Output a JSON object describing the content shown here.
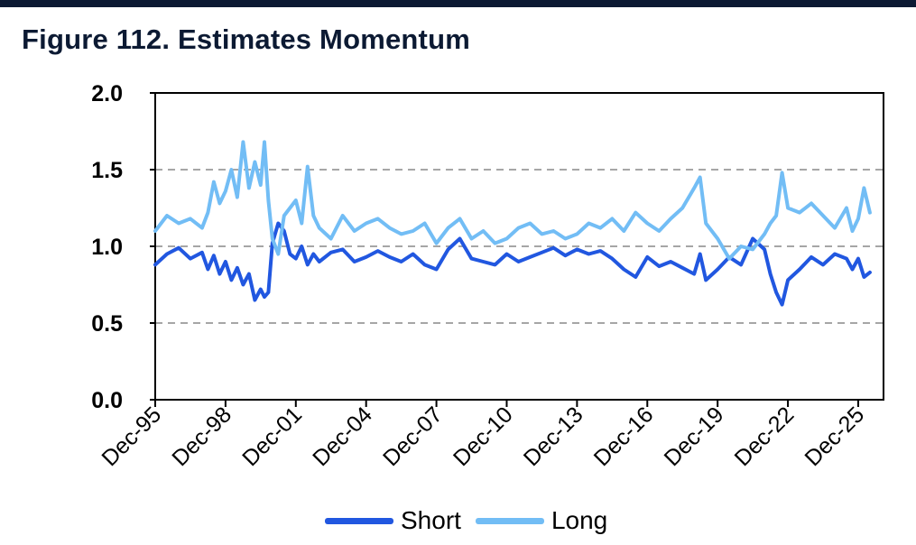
{
  "figure": {
    "title": "Figure 112. Estimates Momentum"
  },
  "chart_data": {
    "type": "line",
    "title": "Figure 112. Estimates Momentum",
    "xlabel": "",
    "ylabel": "",
    "ylim": [
      0,
      2.0
    ],
    "yticks": [
      "0.0",
      "0.5",
      "1.0",
      "1.5",
      "2.0"
    ],
    "x_tick_labels": [
      "Dec-95",
      "Dec-98",
      "Dec-01",
      "Dec-04",
      "Dec-07",
      "Dec-10",
      "Dec-13",
      "Dec-16",
      "Dec-19",
      "Dec-22",
      "Dec-25"
    ],
    "x_tick_years": [
      1995.92,
      1998.92,
      2001.92,
      2004.92,
      2007.92,
      2010.92,
      2013.92,
      2016.92,
      2019.92,
      2022.92,
      2025.92
    ],
    "xlim": [
      1995.92,
      2027.0
    ],
    "grid": "horizontal-dashed",
    "legend_position": "bottom-center",
    "x": [
      1995.92,
      1996.42,
      1996.92,
      1997.42,
      1997.92,
      1998.17,
      1998.42,
      1998.67,
      1998.92,
      1999.17,
      1999.42,
      1999.67,
      1999.92,
      2000.17,
      2000.42,
      2000.58,
      2000.75,
      2000.92,
      2001.17,
      2001.42,
      2001.67,
      2001.92,
      2002.17,
      2002.42,
      2002.67,
      2002.92,
      2003.42,
      2003.92,
      2004.42,
      2004.92,
      2005.42,
      2005.92,
      2006.42,
      2006.92,
      2007.42,
      2007.92,
      2008.42,
      2008.92,
      2009.42,
      2009.92,
      2010.42,
      2010.92,
      2011.42,
      2011.92,
      2012.42,
      2012.92,
      2013.42,
      2013.92,
      2014.42,
      2014.92,
      2015.42,
      2015.92,
      2016.42,
      2016.92,
      2017.42,
      2017.92,
      2018.42,
      2018.92,
      2019.17,
      2019.42,
      2019.92,
      2020.42,
      2020.92,
      2021.42,
      2021.92,
      2022.17,
      2022.42,
      2022.67,
      2022.92,
      2023.42,
      2023.92,
      2024.42,
      2024.92,
      2025.42,
      2025.67,
      2025.92,
      2026.17,
      2026.42
    ],
    "series": [
      {
        "name": "Short",
        "color": "#2157e0",
        "values": [
          0.88,
          0.95,
          0.99,
          0.92,
          0.96,
          0.85,
          0.94,
          0.82,
          0.9,
          0.78,
          0.86,
          0.75,
          0.82,
          0.65,
          0.72,
          0.67,
          0.7,
          1.02,
          1.15,
          1.1,
          0.95,
          0.92,
          1.0,
          0.88,
          0.95,
          0.9,
          0.96,
          0.98,
          0.9,
          0.93,
          0.97,
          0.93,
          0.9,
          0.95,
          0.88,
          0.85,
          0.98,
          1.05,
          0.92,
          0.9,
          0.88,
          0.95,
          0.9,
          0.93,
          0.96,
          0.99,
          0.94,
          0.98,
          0.95,
          0.97,
          0.92,
          0.85,
          0.8,
          0.93,
          0.87,
          0.9,
          0.86,
          0.82,
          0.95,
          0.78,
          0.85,
          0.93,
          0.88,
          1.05,
          0.98,
          0.82,
          0.7,
          0.62,
          0.78,
          0.85,
          0.93,
          0.88,
          0.95,
          0.92,
          0.85,
          0.92,
          0.8,
          0.83
        ]
      },
      {
        "name": "Long",
        "color": "#72bdf5",
        "values": [
          1.1,
          1.2,
          1.15,
          1.18,
          1.12,
          1.22,
          1.42,
          1.28,
          1.36,
          1.5,
          1.32,
          1.68,
          1.38,
          1.55,
          1.4,
          1.68,
          1.3,
          1.05,
          0.95,
          1.2,
          1.25,
          1.3,
          1.15,
          1.52,
          1.2,
          1.12,
          1.05,
          1.2,
          1.1,
          1.15,
          1.18,
          1.12,
          1.08,
          1.1,
          1.15,
          1.02,
          1.12,
          1.18,
          1.05,
          1.1,
          1.02,
          1.05,
          1.12,
          1.15,
          1.08,
          1.1,
          1.05,
          1.08,
          1.15,
          1.12,
          1.18,
          1.1,
          1.22,
          1.15,
          1.1,
          1.18,
          1.25,
          1.38,
          1.45,
          1.15,
          1.05,
          0.92,
          1.0,
          0.98,
          1.08,
          1.15,
          1.2,
          1.48,
          1.25,
          1.22,
          1.28,
          1.2,
          1.12,
          1.25,
          1.1,
          1.18,
          1.38,
          1.22
        ]
      }
    ]
  }
}
